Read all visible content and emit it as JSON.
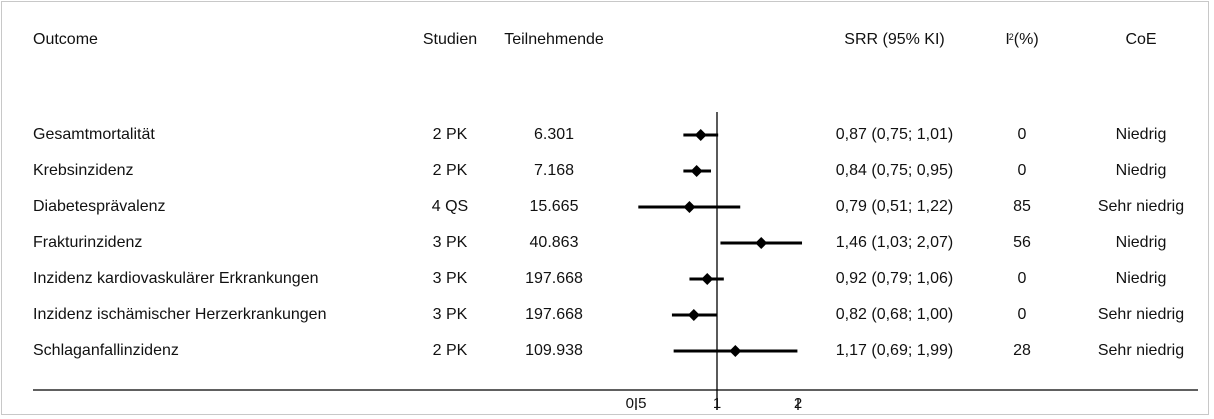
{
  "headers": {
    "outcome": "Outcome",
    "studien": "Studien",
    "teilnehmende": "Teilnehmende",
    "srr": "SRR (95% KI)",
    "i2_base": "I",
    "i2_sup": "2",
    "i2_tail": "(%)",
    "coe": "CoE"
  },
  "rows": [
    {
      "outcome": "Gesamtmortalität",
      "studien": "2 PK",
      "teilnehmende": "6.301",
      "srr": "0,87 (0,75; 1,01)",
      "i2": "0",
      "coe": "Niedrig"
    },
    {
      "outcome": "Krebsinzidenz",
      "studien": "2 PK",
      "teilnehmende": "7.168",
      "srr": "0,84 (0,75; 0,95)",
      "i2": "0",
      "coe": "Niedrig"
    },
    {
      "outcome": "Diabetesprävalenz",
      "studien": "4 QS",
      "teilnehmende": "15.665",
      "srr": "0,79 (0,51; 1,22)",
      "i2": "85",
      "coe": "Sehr niedrig"
    },
    {
      "outcome": "Frakturinzidenz",
      "studien": "3 PK",
      "teilnehmende": "40.863",
      "srr": "1,46 (1,03; 2,07)",
      "i2": "56",
      "coe": "Niedrig"
    },
    {
      "outcome": "Inzidenz kardiovaskulärer Erkrankungen",
      "studien": "3 PK",
      "teilnehmende": "197.668",
      "srr": "0,92 (0,79; 1,06)",
      "i2": "0",
      "coe": "Niedrig"
    },
    {
      "outcome": "Inzidenz ischämischer Herzerkrankungen",
      "studien": "3 PK",
      "teilnehmende": "197.668",
      "srr": "0,82 (0,68; 1,00)",
      "i2": "0",
      "coe": "Sehr niedrig"
    },
    {
      "outcome": "Schlaganfallinzidenz",
      "studien": "2 PK",
      "teilnehmende": "109.938",
      "srr": "1,17 (0,69; 1,99)",
      "i2": "28",
      "coe": "Sehr niedrig"
    }
  ],
  "chart_data": {
    "type": "forest",
    "scale": "log",
    "xlim": [
      0.5,
      2
    ],
    "reference_line": 1,
    "x_ticks": [
      {
        "value": 0.5,
        "label": "0,5"
      },
      {
        "value": 1,
        "label": "1"
      },
      {
        "value": 2,
        "label": "2"
      }
    ],
    "points": [
      {
        "label": "Gesamtmortalität",
        "estimate": 0.87,
        "lower": 0.75,
        "upper": 1.01
      },
      {
        "label": "Krebsinzidenz",
        "estimate": 0.84,
        "lower": 0.75,
        "upper": 0.95
      },
      {
        "label": "Diabetesprävalenz",
        "estimate": 0.79,
        "lower": 0.51,
        "upper": 1.22
      },
      {
        "label": "Frakturinzidenz",
        "estimate": 1.46,
        "lower": 1.03,
        "upper": 2.07
      },
      {
        "label": "Inzidenz kardiovaskulärer Erkrankungen",
        "estimate": 0.92,
        "lower": 0.79,
        "upper": 1.06
      },
      {
        "label": "Inzidenz ischämischer Herzerkrankungen",
        "estimate": 0.82,
        "lower": 0.68,
        "upper": 1.0
      },
      {
        "label": "Schlaganfallinzidenz",
        "estimate": 1.17,
        "lower": 0.69,
        "upper": 1.99
      }
    ]
  }
}
